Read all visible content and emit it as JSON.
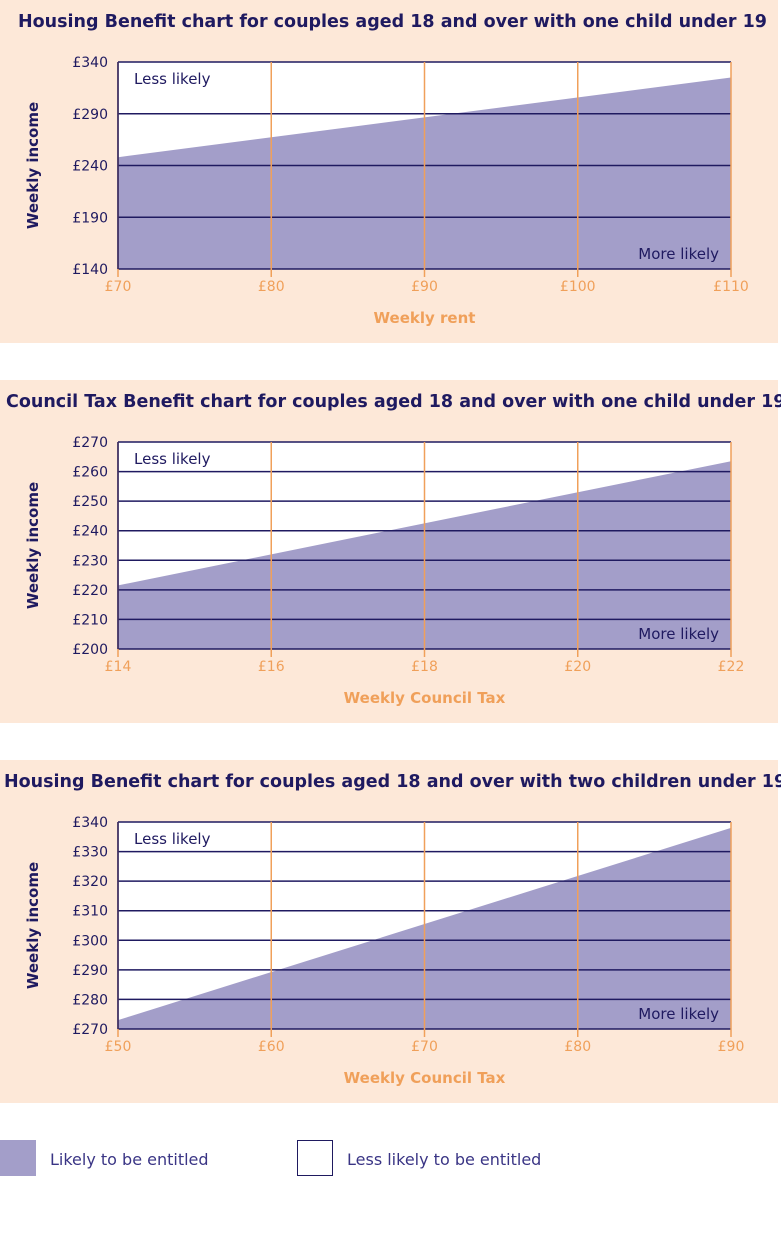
{
  "colors": {
    "panel_bg": "#fde8d8",
    "fill": "#a39ec9",
    "grid_h": "#1f1a60",
    "grid_v": "#f0a05a",
    "axis_text": "#1f1a60",
    "x_tick_text": "#f0a05a",
    "x_label_text": "#f0a05a"
  },
  "chart_data": [
    {
      "type": "area",
      "title": "Housing Benefit chart for couples aged 18 and over with one child under 19",
      "xlabel": "Weekly rent",
      "ylabel": "Weekly income",
      "x_ticks": [
        70,
        80,
        90,
        100,
        110
      ],
      "x_tick_labels": [
        "£70",
        "£80",
        "£90",
        "£100",
        "£110"
      ],
      "y_ticks": [
        140,
        190,
        240,
        290,
        340
      ],
      "y_tick_labels": [
        "£140",
        "£190",
        "£240",
        "£290",
        "£340"
      ],
      "xlim": [
        70,
        110
      ],
      "ylim": [
        140,
        340
      ],
      "boundary": [
        {
          "x": 70,
          "y": 248
        },
        {
          "x": 110,
          "y": 325
        }
      ],
      "annotations": {
        "less_likely": "Less likely",
        "more_likely": "More likely"
      }
    },
    {
      "type": "area",
      "title": "Council Tax Benefit chart for couples aged 18 and over with one child under 19",
      "xlabel": "Weekly Council Tax",
      "ylabel": "Weekly income",
      "x_ticks": [
        14,
        16,
        18,
        20,
        22
      ],
      "x_tick_labels": [
        "£14",
        "£16",
        "£18",
        "£20",
        "£22"
      ],
      "y_ticks": [
        200,
        210,
        220,
        230,
        240,
        250,
        260,
        270
      ],
      "y_tick_labels": [
        "£200",
        "£210",
        "£220",
        "£230",
        "£240",
        "£250",
        "£260",
        "£270"
      ],
      "xlim": [
        14,
        22
      ],
      "ylim": [
        200,
        270
      ],
      "boundary": [
        {
          "x": 14,
          "y": 221.5
        },
        {
          "x": 22,
          "y": 263.5
        }
      ],
      "annotations": {
        "less_likely": "Less likely",
        "more_likely": "More likely"
      }
    },
    {
      "type": "area",
      "title": "Housing Benefit chart for couples aged 18 and over with two children under 19",
      "xlabel": "Weekly Council Tax",
      "ylabel": "Weekly income",
      "x_ticks": [
        50,
        60,
        70,
        80,
        90
      ],
      "x_tick_labels": [
        "£50",
        "£60",
        "£70",
        "£80",
        "£90"
      ],
      "y_ticks": [
        270,
        280,
        290,
        300,
        310,
        320,
        330,
        340
      ],
      "y_tick_labels": [
        "£270",
        "£280",
        "£290",
        "£300",
        "£310",
        "£320",
        "£330",
        "£340"
      ],
      "xlim": [
        50,
        90
      ],
      "ylim": [
        270,
        340
      ],
      "boundary": [
        {
          "x": 50,
          "y": 273
        },
        {
          "x": 90,
          "y": 338
        }
      ],
      "annotations": {
        "less_likely": "Less likely",
        "more_likely": "More likely"
      }
    }
  ],
  "legend": {
    "likely_label": "Likely to be entitled",
    "less_likely_label": "Less likely to be entitled"
  }
}
